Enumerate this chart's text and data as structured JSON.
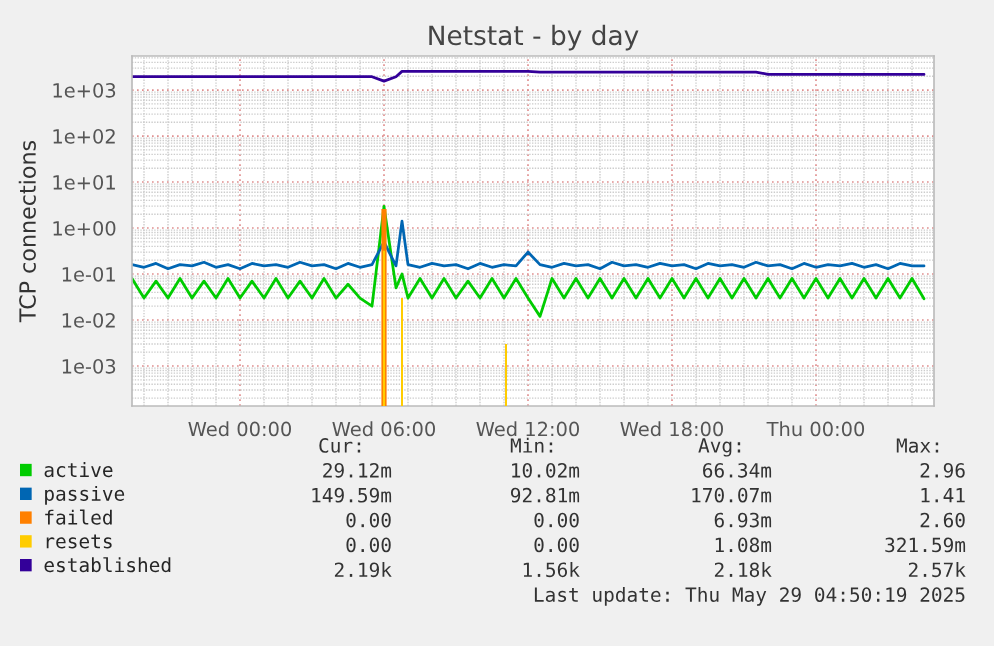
{
  "chart_data": {
    "type": "line",
    "title": "Netstat - by day",
    "ylabel": "TCP connections",
    "log": "y",
    "grid": true,
    "legend": "bottom left",
    "marker": "none",
    "line_style": "solid",
    "xlim": [
      "2025-05-27T19:30",
      "2025-05-29T04:55"
    ],
    "xticks": [
      {
        "value": "2025-05-28T00:00",
        "label": "Wed 00:00"
      },
      {
        "value": "2025-05-28T06:00",
        "label": "Wed 06:00"
      },
      {
        "value": "2025-05-28T12:00",
        "label": "Wed 12:00"
      },
      {
        "value": "2025-05-28T18:00",
        "label": "Wed 18:00"
      },
      {
        "value": "2025-05-29T00:00",
        "label": "Thu 00:00"
      }
    ],
    "ylim": [
      0.000135,
      5500
    ],
    "yticks": [
      {
        "value": 0.001,
        "label": "1e-03"
      },
      {
        "value": 0.01,
        "label": "1e-02"
      },
      {
        "value": 0.1,
        "label": "1e-01"
      },
      {
        "value": 1,
        "label": "1e+00"
      },
      {
        "value": 10,
        "label": "1e+01"
      },
      {
        "value": 100,
        "label": "1e+02"
      },
      {
        "value": 1000,
        "label": "1e+03"
      }
    ],
    "x": [
      "2025-05-27T19:30",
      "2025-05-27T20:00",
      "2025-05-27T20:30",
      "2025-05-27T21:00",
      "2025-05-27T21:30",
      "2025-05-27T22:00",
      "2025-05-27T22:30",
      "2025-05-27T23:00",
      "2025-05-27T23:30",
      "2025-05-28T00:00",
      "2025-05-28T00:30",
      "2025-05-28T01:00",
      "2025-05-28T01:30",
      "2025-05-28T02:00",
      "2025-05-28T02:30",
      "2025-05-28T03:00",
      "2025-05-28T03:30",
      "2025-05-28T04:00",
      "2025-05-28T04:30",
      "2025-05-28T05:00",
      "2025-05-28T05:30",
      "2025-05-28T06:00",
      "2025-05-28T06:30",
      "2025-05-28T06:45",
      "2025-05-28T07:00",
      "2025-05-28T07:30",
      "2025-05-28T08:00",
      "2025-05-28T08:30",
      "2025-05-28T09:00",
      "2025-05-28T09:30",
      "2025-05-28T10:00",
      "2025-05-28T10:30",
      "2025-05-28T11:00",
      "2025-05-28T11:30",
      "2025-05-28T12:00",
      "2025-05-28T12:30",
      "2025-05-28T13:00",
      "2025-05-28T13:30",
      "2025-05-28T14:00",
      "2025-05-28T14:30",
      "2025-05-28T15:00",
      "2025-05-28T15:30",
      "2025-05-28T16:00",
      "2025-05-28T16:30",
      "2025-05-28T17:00",
      "2025-05-28T17:30",
      "2025-05-28T18:00",
      "2025-05-28T18:30",
      "2025-05-28T19:00",
      "2025-05-28T19:30",
      "2025-05-28T20:00",
      "2025-05-28T20:30",
      "2025-05-28T21:00",
      "2025-05-28T21:30",
      "2025-05-28T22:00",
      "2025-05-28T22:30",
      "2025-05-28T23:00",
      "2025-05-28T23:30",
      "2025-05-29T00:00",
      "2025-05-29T00:30",
      "2025-05-29T01:00",
      "2025-05-29T01:30",
      "2025-05-29T02:00",
      "2025-05-29T02:30",
      "2025-05-29T03:00",
      "2025-05-29T03:30",
      "2025-05-29T04:00",
      "2025-05-29T04:30"
    ],
    "series": [
      {
        "name": "active",
        "color": "#00cc00",
        "values": [
          0.08,
          0.03,
          0.07,
          0.03,
          0.08,
          0.03,
          0.07,
          0.03,
          0.08,
          0.03,
          0.07,
          0.03,
          0.08,
          0.03,
          0.07,
          0.03,
          0.08,
          0.03,
          0.06,
          0.03,
          0.02,
          2.96,
          0.05,
          0.1,
          0.03,
          0.08,
          0.03,
          0.08,
          0.03,
          0.07,
          0.03,
          0.08,
          0.03,
          0.08,
          0.03,
          0.012,
          0.08,
          0.03,
          0.08,
          0.03,
          0.08,
          0.03,
          0.08,
          0.03,
          0.08,
          0.03,
          0.08,
          0.03,
          0.08,
          0.03,
          0.08,
          0.03,
          0.08,
          0.03,
          0.08,
          0.03,
          0.08,
          0.03,
          0.08,
          0.03,
          0.08,
          0.03,
          0.08,
          0.03,
          0.08,
          0.03,
          0.08,
          0.029
        ]
      },
      {
        "name": "passive",
        "color": "#0066b3",
        "values": [
          0.16,
          0.14,
          0.17,
          0.13,
          0.16,
          0.15,
          0.18,
          0.14,
          0.16,
          0.13,
          0.17,
          0.15,
          0.16,
          0.14,
          0.18,
          0.15,
          0.16,
          0.13,
          0.17,
          0.14,
          0.16,
          0.5,
          0.15,
          1.41,
          0.16,
          0.14,
          0.17,
          0.15,
          0.16,
          0.13,
          0.17,
          0.14,
          0.16,
          0.15,
          0.3,
          0.16,
          0.14,
          0.17,
          0.15,
          0.16,
          0.13,
          0.18,
          0.15,
          0.16,
          0.14,
          0.17,
          0.15,
          0.16,
          0.13,
          0.17,
          0.15,
          0.16,
          0.14,
          0.18,
          0.15,
          0.16,
          0.13,
          0.17,
          0.14,
          0.16,
          0.15,
          0.17,
          0.14,
          0.16,
          0.13,
          0.17,
          0.15,
          0.1496
        ]
      },
      {
        "name": "failed",
        "type": "bar",
        "color": "#ff8000",
        "x": [
          "2025-05-28T06:00"
        ],
        "values": [
          2.6
        ]
      },
      {
        "name": "resets",
        "type": "bar",
        "color": "#ffcc00",
        "x": [
          "2025-05-28T06:00",
          "2025-05-28T06:45",
          "2025-05-28T11:05"
        ],
        "values": [
          0.32,
          0.03,
          0.003
        ]
      },
      {
        "name": "established",
        "color": "#330099",
        "values": [
          1950,
          1950,
          1950,
          1950,
          1950,
          1950,
          1950,
          1950,
          1950,
          1950,
          1950,
          1950,
          1950,
          1950,
          1950,
          1950,
          1950,
          1950,
          1950,
          1950,
          1950,
          1560,
          1950,
          2550,
          2550,
          2550,
          2550,
          2550,
          2550,
          2550,
          2550,
          2550,
          2550,
          2550,
          2550,
          2460,
          2460,
          2460,
          2460,
          2460,
          2460,
          2460,
          2460,
          2460,
          2460,
          2460,
          2460,
          2460,
          2460,
          2460,
          2460,
          2460,
          2460,
          2460,
          2200,
          2200,
          2200,
          2200,
          2200,
          2200,
          2200,
          2200,
          2200,
          2200,
          2200,
          2200,
          2200,
          2190
        ]
      }
    ],
    "annotations": [
      "Cur:",
      "Min:",
      "Avg:",
      "Max:",
      "29.12m",
      "10.02m",
      "66.34m",
      "2.96",
      "149.59m",
      "92.81m",
      "170.07m",
      "1.41",
      "0.00",
      "0.00",
      "6.93m",
      "2.60",
      "0.00",
      "0.00",
      "1.08m",
      "321.59m",
      "2.19k",
      "1.56k",
      "2.18k",
      "2.57k",
      "Last update: Thu May 29 04:50:19 2025"
    ]
  }
}
